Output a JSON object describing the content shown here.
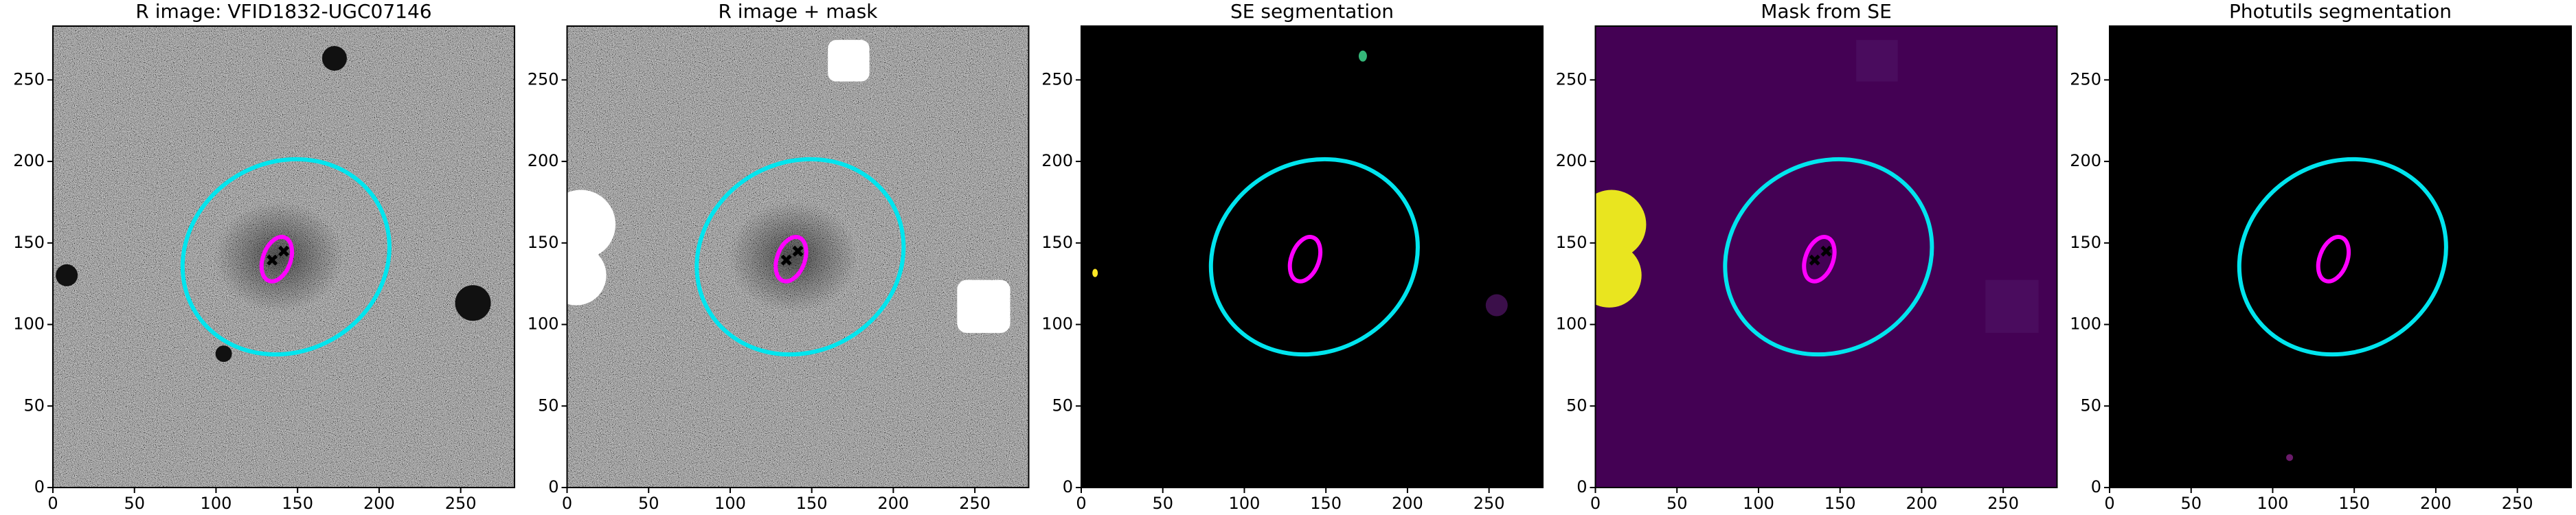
{
  "chart_data": [
    {
      "type": "image",
      "title": "R image: VFID1832-UGC07146",
      "xlim": [
        0,
        283
      ],
      "ylim": [
        0,
        283
      ],
      "xticks": [
        0,
        50,
        100,
        150,
        200,
        250
      ],
      "yticks": [
        0,
        50,
        100,
        150,
        200,
        250
      ]
    },
    {
      "type": "image",
      "title": "R image + mask",
      "xlim": [
        0,
        283
      ],
      "ylim": [
        0,
        283
      ],
      "xticks": [
        0,
        50,
        100,
        150,
        200,
        250
      ],
      "yticks": [
        0,
        50,
        100,
        150,
        200,
        250
      ]
    },
    {
      "type": "image",
      "title": "SE segmentation",
      "xlim": [
        0,
        283
      ],
      "ylim": [
        0,
        283
      ],
      "xticks": [
        0,
        50,
        100,
        150,
        200,
        250
      ],
      "yticks": [
        0,
        50,
        100,
        150,
        200,
        250
      ]
    },
    {
      "type": "image",
      "title": "Mask from SE",
      "xlim": [
        0,
        283
      ],
      "ylim": [
        0,
        283
      ],
      "xticks": [
        0,
        50,
        100,
        150,
        200,
        250
      ],
      "yticks": [
        0,
        50,
        100,
        150,
        200,
        250
      ]
    },
    {
      "type": "image",
      "title": "Photutils segmentation",
      "xlim": [
        0,
        283
      ],
      "ylim": [
        0,
        283
      ],
      "xticks": [
        0,
        50,
        100,
        150,
        200,
        250
      ],
      "yticks": [
        0,
        50,
        100,
        150,
        200,
        250
      ]
    }
  ]
}
